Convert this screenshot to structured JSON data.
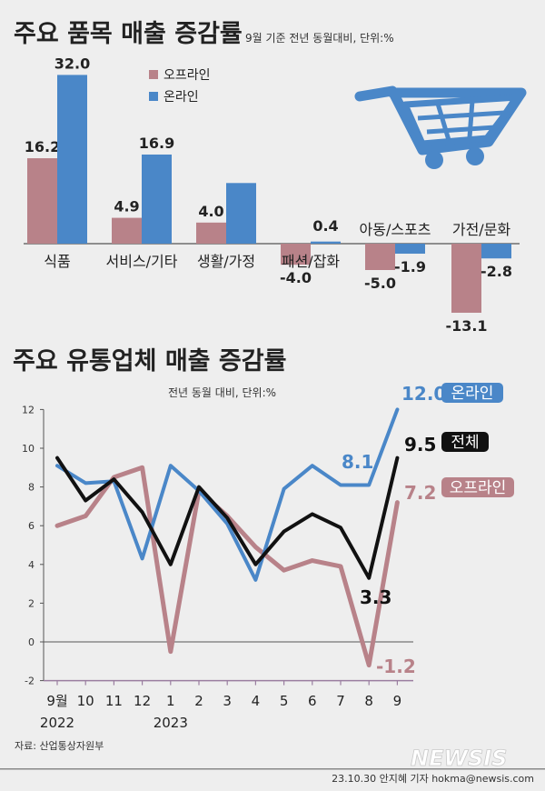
{
  "chart_data": [
    {
      "type": "bar",
      "title": "주요 품목 매출 증감률",
      "subtitle": "9월 기준 전년 동월대비, 단위:%",
      "categories": [
        "식품",
        "서비스/기타",
        "생활/가정",
        "패션/잡화",
        "아동/스포츠",
        "가전/문화"
      ],
      "series": [
        {
          "name": "오프라인",
          "color": "#b88289",
          "values": [
            16.2,
            4.9,
            4.0,
            -4.0,
            -5.0,
            -13.1
          ]
        },
        {
          "name": "온라인",
          "color": "#4a87c8",
          "values": [
            32.0,
            16.9,
            11.5,
            0.4,
            -1.9,
            -2.8
          ]
        }
      ],
      "value_labels": [
        [
          "16.2",
          "4.9",
          "4.0",
          "-4.0",
          "-5.0",
          "-13.1"
        ],
        [
          "32.0",
          "16.9",
          "",
          "0.4",
          "-1.9",
          "-2.8"
        ]
      ]
    },
    {
      "type": "line",
      "title": "주요 유통업체 매출 증감률",
      "subtitle": "전년 동월 대비, 단위:%",
      "x_labels": [
        "9월",
        "10",
        "11",
        "12",
        "1",
        "2",
        "3",
        "4",
        "5",
        "6",
        "7",
        "8",
        "9"
      ],
      "year_labels": [
        "2022",
        "2023"
      ],
      "ylim": [
        -2,
        12
      ],
      "yticks": [
        -2,
        0,
        2,
        4,
        6,
        8,
        10,
        12
      ],
      "grid": false,
      "series": [
        {
          "name": "온라인",
          "color": "#4a87c8",
          "values": [
            9.1,
            8.2,
            8.3,
            4.3,
            9.1,
            7.8,
            6.1,
            3.2,
            7.9,
            9.1,
            8.1,
            8.1,
            12.0
          ],
          "end_label": "12.0",
          "extra_label": "8.1"
        },
        {
          "name": "전체",
          "color": "#111111",
          "values": [
            9.5,
            7.3,
            8.4,
            6.7,
            4.0,
            8.0,
            6.4,
            4.0,
            5.7,
            6.6,
            5.9,
            3.3,
            9.5
          ],
          "end_label": "9.5",
          "extra_label": "3.3"
        },
        {
          "name": "오프라인",
          "color": "#b88289",
          "values": [
            6.0,
            6.5,
            8.5,
            9.0,
            -0.5,
            7.8,
            6.5,
            4.9,
            3.7,
            4.2,
            3.9,
            -1.2,
            7.2
          ],
          "end_label": "7.2",
          "extra_label": "-1.2"
        }
      ]
    }
  ],
  "legend": {
    "offline": "오프라인",
    "online": "온라인"
  },
  "line_tags": {
    "online": "온라인",
    "total": "전체",
    "offline": "오프라인"
  },
  "footer": {
    "source": "자료: 산업통상자원부",
    "brand": "NEWSIS",
    "credit": "23.10.30 안지혜 기자 hokma@newsis.com"
  },
  "colors": {
    "offline": "#b88289",
    "online": "#4a87c8",
    "total": "#111111",
    "background": "#eeeeee",
    "rule": "#9a7da0"
  },
  "icons": [
    "shopping-cart-icon"
  ]
}
